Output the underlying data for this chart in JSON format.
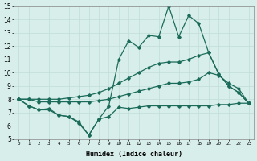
{
  "xlabel": "Humidex (Indice chaleur)",
  "background_color": "#d8eeea",
  "grid_color": "#c0ddd8",
  "line_color": "#1a6b5a",
  "x_values": [
    0,
    1,
    2,
    3,
    4,
    5,
    6,
    7,
    8,
    9,
    10,
    11,
    12,
    13,
    14,
    15,
    16,
    17,
    18,
    19,
    20,
    21,
    22,
    23
  ],
  "line_bottom": [
    8.0,
    7.5,
    7.2,
    7.2,
    6.8,
    6.7,
    6.2,
    5.3,
    6.5,
    6.7,
    7.4,
    7.3,
    7.4,
    7.5,
    7.5,
    7.5,
    7.5,
    7.5,
    7.5,
    7.5,
    7.6,
    7.6,
    7.7,
    7.7
  ],
  "line_mid": [
    8.0,
    8.0,
    7.8,
    7.8,
    7.8,
    7.8,
    7.8,
    7.8,
    7.9,
    8.0,
    8.2,
    8.4,
    8.6,
    8.8,
    9.0,
    9.2,
    9.2,
    9.3,
    9.5,
    10.0,
    9.8,
    9.2,
    8.8,
    7.7
  ],
  "line_top_smooth": [
    8.0,
    8.0,
    8.0,
    8.0,
    8.0,
    8.1,
    8.2,
    8.3,
    8.5,
    8.8,
    9.2,
    9.6,
    10.0,
    10.4,
    10.7,
    10.8,
    10.8,
    11.0,
    11.3,
    11.5,
    9.9,
    9.0,
    8.5,
    7.7
  ],
  "line_jagged": [
    8.0,
    7.5,
    7.2,
    7.3,
    6.8,
    6.7,
    6.3,
    5.3,
    6.5,
    7.5,
    11.0,
    12.4,
    11.9,
    12.8,
    12.7,
    15.0,
    12.7,
    14.3,
    13.7,
    11.5,
    9.9,
    9.0,
    8.5,
    7.7
  ],
  "ylim": [
    5,
    15
  ],
  "xlim": [
    -0.5,
    23.5
  ]
}
